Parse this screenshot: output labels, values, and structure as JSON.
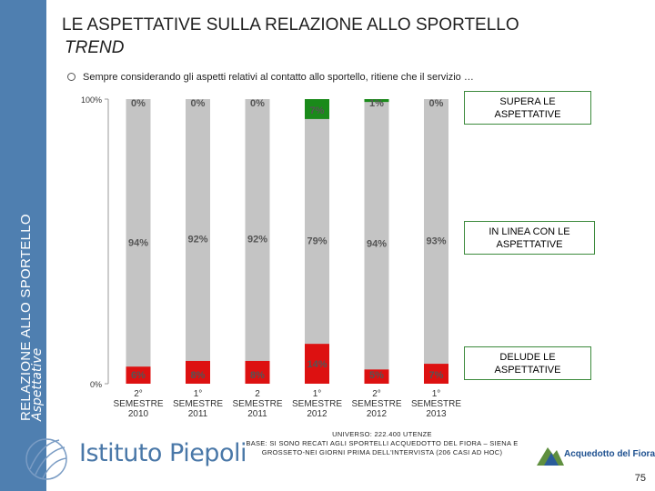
{
  "sidebar": {
    "main_label": "RELAZIONE ALLO SPORTELLO",
    "sub_label": "Aspettative"
  },
  "title": {
    "main": "LE ASPETTATIVE SULLA RELAZIONE ALLO SPORTELLO",
    "sub": "TREND"
  },
  "question": "Sempre considerando gli aspetti relativi al contatto allo sportello, ritiene che il servizio …",
  "colors": {
    "green": "#1a8a1a",
    "gray": "#c4c4c4",
    "red": "#dd1111",
    "sidebar": "#4f7fb0"
  },
  "chart_data": {
    "type": "bar",
    "stacked": true,
    "categories": [
      [
        "2°",
        "SEMESTRE",
        "2010"
      ],
      [
        "1°",
        "SEMESTRE",
        "2011"
      ],
      [
        "2",
        "SEMESTRE",
        "2011"
      ],
      [
        "1°",
        "SEMESTRE",
        "2012"
      ],
      [
        "2°",
        "SEMESTRE",
        "2012"
      ],
      [
        "1°",
        "SEMESTRE",
        "2013"
      ]
    ],
    "ylim": [
      0,
      100
    ],
    "yticks": [
      "0%",
      "100%"
    ],
    "series": [
      {
        "name": "DELUDE LE ASPETTATIVE",
        "color": "#dd1111",
        "values": [
          6,
          8,
          8,
          14,
          5,
          7
        ],
        "labels": [
          "6%",
          "8%",
          "8%",
          "14%",
          "5%",
          "7%"
        ]
      },
      {
        "name": "IN LINEA CON LE ASPETTATIVE",
        "color": "#c4c4c4",
        "values": [
          94,
          92,
          92,
          79,
          94,
          93
        ],
        "labels": [
          "94%",
          "92%",
          "92%",
          "79%",
          "94%",
          "93%"
        ]
      },
      {
        "name": "SUPERA LE ASPETTATIVE",
        "color": "#1a8a1a",
        "values": [
          0,
          0,
          0,
          7,
          1,
          0
        ],
        "labels": [
          "0%",
          "0%",
          "0%",
          "7%",
          "1%",
          "0%"
        ]
      }
    ]
  },
  "legend": {
    "top": "SUPERA LE ASPETTATIVE",
    "middle": "IN LINEA CON LE ASPETTATIVE",
    "bottom": "DELUDE LE ASPETTATIVE"
  },
  "footnote": {
    "line1": "UNIVERSO: 222.400 UTENZE",
    "line2": "BASE: SI SONO RECATI AGLI SPORTELLI ACQUEDOTTO DEL FIORA – SIENA E",
    "line3": "GROSSETO-NEI GIORNI PRIMA DELL'INTERVISTA (206 CASI AD HOC)"
  },
  "logos": {
    "piepoli": "Istituto Piepoli",
    "acquedotto": "Acquedotto del Fiora"
  },
  "page_number": "75"
}
